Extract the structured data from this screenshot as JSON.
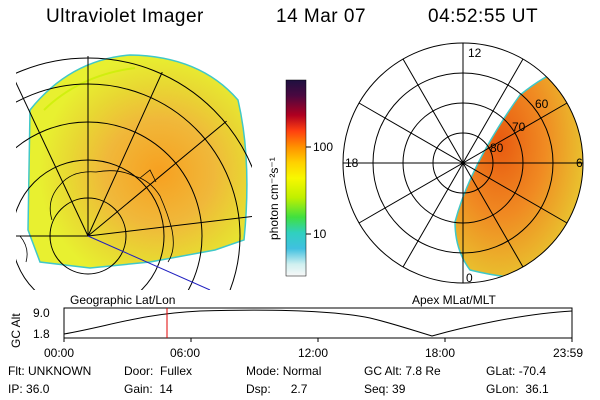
{
  "header": {
    "instrument": "Ultraviolet Imager",
    "date": "14 Mar 07",
    "time": "04:52:55 UT"
  },
  "left_panel": {
    "caption": "Geographic Lat/Lon"
  },
  "right_panel": {
    "caption": "Apex MLat/MLT",
    "mlt_labels": {
      "top": "12",
      "left": "18",
      "right": "6",
      "bottom": "0"
    },
    "lat_labels": [
      "60",
      "70",
      "80"
    ]
  },
  "colorbar": {
    "unit_label": "photon cm⁻²s⁻¹",
    "ticks": [
      "100",
      "10"
    ],
    "scale": "log",
    "colors": [
      "#2a1850",
      "#c8001c",
      "#ff8c00",
      "#ffcc00",
      "#f8f800",
      "#c8f000",
      "#40e040",
      "#40c8c8",
      "#c8f0f0",
      "#f8f8f8"
    ]
  },
  "orbit_plot": {
    "ylabel": "GC Alt",
    "y_ticks": [
      "9.0",
      "1.8"
    ],
    "x_ticks": [
      "00:00",
      "06:00",
      "12:00",
      "18:00",
      "23:59"
    ],
    "cursor_time": "04:52:55",
    "cursor_color": "#e00000"
  },
  "info": {
    "row1": [
      {
        "label": "Flt:",
        "value": "UNKNOWN"
      },
      {
        "label": "Door:",
        "value": "Fullex"
      },
      {
        "label": "Mode:",
        "value": "Normal"
      },
      {
        "label": "GC Alt:",
        "value": "7.8 Re"
      },
      {
        "label": "GLat:",
        "value": "-70.4"
      }
    ],
    "row2": [
      {
        "label": "IP:",
        "value": "36.0"
      },
      {
        "label": "Gain:",
        "value": "14"
      },
      {
        "label": "Dsp:",
        "value": "2.7"
      },
      {
        "label": "Seq:",
        "value": "39"
      },
      {
        "label": "GLon:",
        "value": "36.1"
      }
    ]
  }
}
